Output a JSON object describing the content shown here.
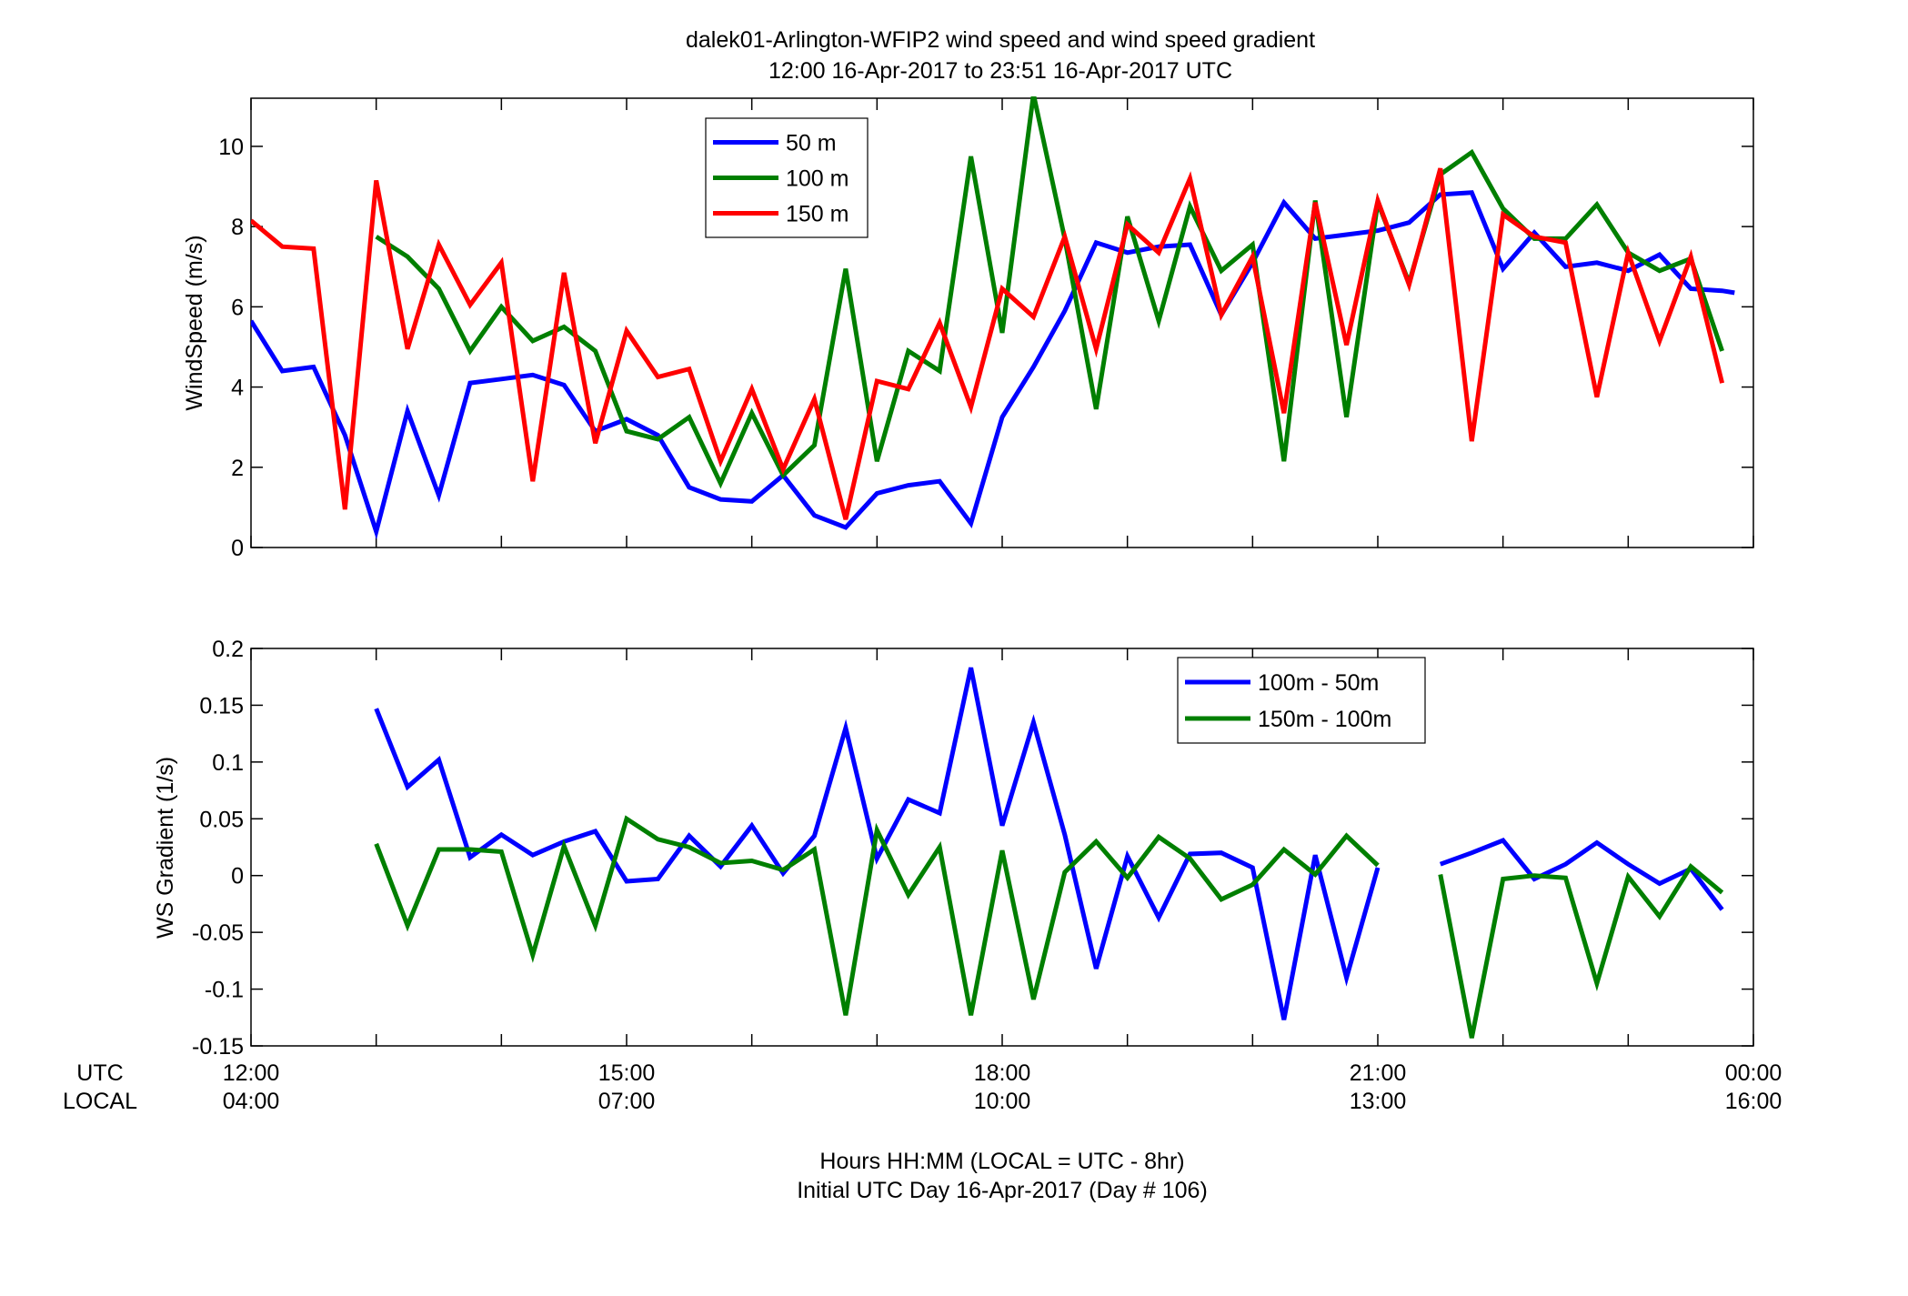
{
  "title_line1": "dalek01-Arlington-WFIP2  wind speed and wind speed gradient",
  "title_line2": "12:00 16-Apr-2017 to 23:51 16-Apr-2017  UTC",
  "row_labels": {
    "utc": "UTC",
    "local": "LOCAL"
  },
  "xlabel_line1": "Hours HH:MM  (LOCAL = UTC - 8hr)",
  "xlabel_line2": "Initial UTC Day 16-Apr-2017 (Day # 106)",
  "x_ticks": [
    {
      "x": 0,
      "utc": "12:00",
      "local": "04:00"
    },
    {
      "x": 3,
      "utc": "15:00",
      "local": "07:00"
    },
    {
      "x": 6,
      "utc": "18:00",
      "local": "10:00"
    },
    {
      "x": 9,
      "utc": "21:00",
      "local": "13:00"
    },
    {
      "x": 12,
      "utc": "00:00",
      "local": "16:00"
    }
  ],
  "colors": {
    "blue": "#0000ff",
    "green": "#007f00",
    "red": "#ff0000"
  },
  "chart_data": [
    {
      "type": "line",
      "ylabel": "WindSpeed (m/s)",
      "xlim": [
        0,
        12
      ],
      "ylim": [
        0,
        11.2
      ],
      "yticks": [
        0,
        2,
        4,
        6,
        8,
        10
      ],
      "legend_position": "top-center",
      "x": [
        0,
        0.25,
        0.5,
        0.75,
        1,
        1.25,
        1.5,
        1.75,
        2,
        2.25,
        2.5,
        2.75,
        3,
        3.25,
        3.5,
        3.75,
        4,
        4.25,
        4.5,
        4.75,
        5,
        5.25,
        5.5,
        5.75,
        6,
        6.25,
        6.5,
        6.75,
        7,
        7.25,
        7.5,
        7.75,
        8,
        8.25,
        8.5,
        8.75,
        9,
        9.25,
        9.5,
        9.75,
        10,
        10.25,
        10.5,
        10.75,
        11,
        11.25,
        11.5,
        11.75,
        11.85
      ],
      "series": [
        {
          "name": "50 m",
          "color": "#0000ff",
          "values": [
            5.65,
            4.4,
            4.5,
            2.8,
            0.4,
            3.4,
            1.3,
            4.1,
            4.2,
            4.3,
            4.05,
            2.9,
            3.2,
            2.8,
            1.5,
            1.2,
            1.15,
            1.8,
            0.8,
            0.5,
            1.35,
            1.55,
            1.65,
            0.6,
            3.25,
            4.5,
            5.9,
            7.6,
            7.35,
            7.5,
            7.55,
            5.8,
            7.1,
            8.6,
            7.7,
            7.8,
            7.9,
            8.1,
            8.8,
            8.85,
            6.95,
            7.85,
            7.0,
            7.1,
            6.9,
            7.3,
            6.45,
            6.4,
            6.35
          ]
        },
        {
          "name": "100 m",
          "color": "#007f00",
          "values": [
            null,
            null,
            null,
            null,
            7.75,
            7.25,
            6.45,
            4.9,
            6.0,
            5.15,
            5.5,
            4.9,
            2.9,
            2.7,
            3.25,
            1.6,
            3.35,
            1.8,
            2.55,
            6.95,
            2.15,
            4.9,
            4.4,
            9.75,
            5.35,
            11.3,
            7.7,
            3.45,
            8.25,
            5.65,
            8.5,
            6.9,
            7.55,
            2.15,
            8.65,
            3.25,
            8.6,
            6.6,
            9.3,
            9.85,
            8.45,
            7.7,
            7.7,
            8.55,
            7.35,
            6.9,
            7.2,
            4.9,
            null
          ]
        },
        {
          "name": "150 m",
          "color": "#ff0000",
          "values": [
            8.15,
            7.5,
            7.45,
            0.95,
            9.15,
            4.95,
            7.55,
            6.05,
            7.1,
            1.65,
            6.85,
            2.6,
            5.4,
            4.25,
            4.45,
            2.15,
            3.95,
            1.95,
            3.7,
            0.7,
            4.15,
            3.95,
            5.6,
            3.5,
            6.45,
            5.75,
            7.75,
            4.95,
            8.05,
            7.35,
            9.2,
            5.8,
            7.25,
            3.35,
            8.6,
            5.05,
            8.65,
            6.55,
            9.45,
            2.65,
            8.3,
            7.75,
            7.6,
            3.75,
            7.35,
            5.15,
            7.25,
            4.1,
            null
          ]
        }
      ]
    },
    {
      "type": "line",
      "ylabel": "WS Gradient (1/s)",
      "xlim": [
        0,
        12
      ],
      "ylim": [
        -0.15,
        0.2
      ],
      "yticks": [
        -0.15,
        -0.1,
        -0.05,
        0,
        0.05,
        0.1,
        0.15,
        0.2
      ],
      "ytick_labels": [
        "-0.15",
        "-0.1",
        "-0.05",
        "0",
        "0.05",
        "0.1",
        "0.15",
        "0.2"
      ],
      "legend_position": "top-right",
      "x": [
        0,
        0.25,
        0.5,
        0.75,
        1,
        1.25,
        1.5,
        1.75,
        2,
        2.25,
        2.5,
        2.75,
        3,
        3.25,
        3.5,
        3.75,
        4,
        4.25,
        4.5,
        4.75,
        5,
        5.25,
        5.5,
        5.75,
        6,
        6.25,
        6.5,
        6.75,
        7,
        7.25,
        7.5,
        7.75,
        8,
        8.25,
        8.5,
        8.75,
        9,
        9.25,
        9.5,
        9.75,
        10,
        10.25,
        10.5,
        10.75,
        11,
        11.25,
        11.5,
        11.75,
        11.85
      ],
      "series": [
        {
          "name": "100m - 50m",
          "color": "#0000ff",
          "values": [
            null,
            null,
            null,
            null,
            0.147,
            0.078,
            0.102,
            0.016,
            0.036,
            0.018,
            0.03,
            0.039,
            -0.005,
            -0.003,
            0.035,
            0.008,
            0.044,
            0.002,
            0.035,
            0.13,
            0.015,
            0.067,
            0.055,
            0.183,
            0.044,
            0.135,
            0.036,
            -0.082,
            0.017,
            -0.037,
            0.019,
            0.02,
            0.007,
            -0.127,
            0.018,
            -0.09,
            0.007,
            null,
            0.01,
            0.02,
            0.031,
            -0.003,
            0.01,
            0.029,
            0.01,
            -0.007,
            0.006,
            -0.03,
            null
          ]
        },
        {
          "name": "150m - 100m",
          "color": "#007f00",
          "values": [
            null,
            null,
            null,
            null,
            0.028,
            -0.044,
            0.023,
            0.023,
            0.021,
            -0.07,
            0.026,
            -0.044,
            0.05,
            0.032,
            0.025,
            0.011,
            0.013,
            0.005,
            0.023,
            -0.123,
            0.04,
            -0.017,
            0.025,
            -0.123,
            0.022,
            -0.109,
            0.003,
            0.03,
            -0.002,
            0.034,
            0.015,
            -0.021,
            -0.008,
            0.023,
            0.001,
            0.035,
            0.009,
            null,
            0.001,
            -0.143,
            -0.003,
            0.0,
            -0.002,
            -0.095,
            -0.001,
            -0.036,
            0.008,
            -0.015,
            null
          ]
        }
      ]
    }
  ]
}
